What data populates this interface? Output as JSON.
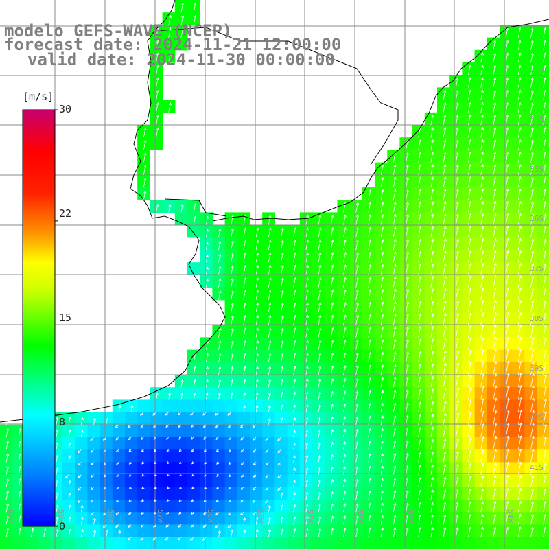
{
  "title": {
    "line1": "modelo GEFS-WAVE (NCEP)",
    "line2": "forecast date: 2024-11-21 12:00:00",
    "line3": "valid date: 2024-11-30 00:00:00"
  },
  "colorbar": {
    "unit": "[m/s]",
    "min": 0,
    "max": 30,
    "ticks": [
      "30",
      "22",
      "15",
      "8",
      "0"
    ],
    "tick_values": [
      30,
      22,
      15,
      8,
      0
    ],
    "colors": [
      "#0000ff",
      "#00aaff",
      "#00ffff",
      "#00ff00",
      "#ffff00",
      "#ff8800",
      "#ff0000",
      "#c8006e"
    ]
  },
  "lat_labels": [
    "33S",
    "34S",
    "35S",
    "36S",
    "37S",
    "38S",
    "39S",
    "40S",
    "41S"
  ],
  "lon_labels": [
    "60W",
    "59W",
    "58W",
    "57W",
    "56W",
    "55W",
    "54W",
    "53W",
    "52W",
    "51W"
  ],
  "field": {
    "variable": "wind speed",
    "arrow_color": "#ffffff",
    "land_color": "#ffffff",
    "coast_color": "#000000"
  }
}
